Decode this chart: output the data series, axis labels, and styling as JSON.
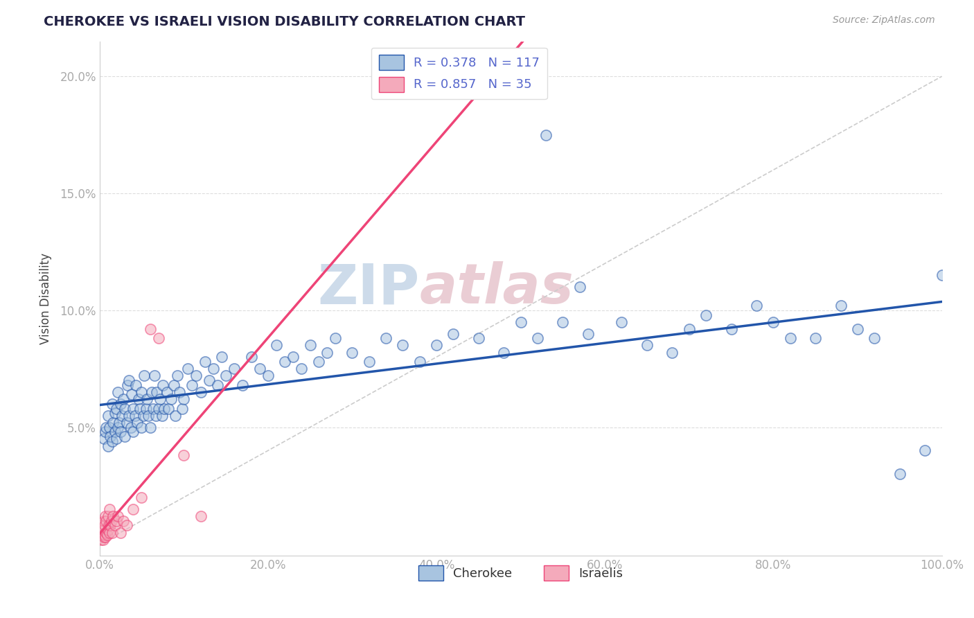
{
  "title": "CHEROKEE VS ISRAELI VISION DISABILITY CORRELATION CHART",
  "source": "Source: ZipAtlas.com",
  "ylabel_label": "Vision Disability",
  "legend_label1": "Cherokee",
  "legend_label2": "Israelis",
  "R1": 0.378,
  "N1": 117,
  "R2": 0.857,
  "N2": 35,
  "xlim": [
    0.0,
    1.0
  ],
  "ylim": [
    -0.005,
    0.215
  ],
  "xticks": [
    0.0,
    0.2,
    0.4,
    0.6,
    0.8,
    1.0
  ],
  "yticks": [
    0.05,
    0.1,
    0.15,
    0.2
  ],
  "xtick_labels": [
    "0.0%",
    "20.0%",
    "40.0%",
    "60.0%",
    "80.0%",
    "100.0%"
  ],
  "ytick_labels": [
    "5.0%",
    "10.0%",
    "15.0%",
    "20.0%"
  ],
  "color_blue": "#A8C4E0",
  "color_pink": "#F4AABB",
  "line_blue": "#2255AA",
  "line_pink": "#EE4477",
  "line_gray": "#CCCCCC",
  "title_color": "#222244",
  "axis_color": "#5566CC",
  "watermark_color": "#C8D8E8",
  "watermark_color2": "#E8C8D0",
  "blue_x": [
    0.005,
    0.007,
    0.008,
    0.01,
    0.01,
    0.012,
    0.013,
    0.015,
    0.015,
    0.016,
    0.018,
    0.018,
    0.02,
    0.02,
    0.022,
    0.022,
    0.023,
    0.025,
    0.025,
    0.027,
    0.028,
    0.03,
    0.03,
    0.032,
    0.033,
    0.035,
    0.035,
    0.037,
    0.038,
    0.04,
    0.04,
    0.042,
    0.043,
    0.045,
    0.046,
    0.048,
    0.05,
    0.05,
    0.052,
    0.053,
    0.055,
    0.056,
    0.058,
    0.06,
    0.062,
    0.064,
    0.065,
    0.067,
    0.068,
    0.07,
    0.072,
    0.074,
    0.075,
    0.077,
    0.08,
    0.082,
    0.085,
    0.088,
    0.09,
    0.092,
    0.095,
    0.098,
    0.1,
    0.105,
    0.11,
    0.115,
    0.12,
    0.125,
    0.13,
    0.135,
    0.14,
    0.145,
    0.15,
    0.16,
    0.17,
    0.18,
    0.19,
    0.2,
    0.21,
    0.22,
    0.23,
    0.24,
    0.25,
    0.26,
    0.27,
    0.28,
    0.3,
    0.32,
    0.34,
    0.36,
    0.38,
    0.4,
    0.42,
    0.45,
    0.48,
    0.5,
    0.52,
    0.55,
    0.58,
    0.62,
    0.65,
    0.68,
    0.7,
    0.72,
    0.75,
    0.78,
    0.8,
    0.82,
    0.85,
    0.88,
    0.9,
    0.92,
    0.95,
    0.98,
    1.0,
    0.53,
    0.57
  ],
  "blue_y": [
    0.045,
    0.048,
    0.05,
    0.042,
    0.055,
    0.05,
    0.046,
    0.044,
    0.06,
    0.052,
    0.048,
    0.056,
    0.045,
    0.058,
    0.05,
    0.065,
    0.052,
    0.048,
    0.06,
    0.055,
    0.062,
    0.046,
    0.058,
    0.052,
    0.068,
    0.055,
    0.07,
    0.05,
    0.064,
    0.048,
    0.058,
    0.055,
    0.068,
    0.052,
    0.062,
    0.058,
    0.05,
    0.065,
    0.055,
    0.072,
    0.058,
    0.062,
    0.055,
    0.05,
    0.065,
    0.058,
    0.072,
    0.055,
    0.065,
    0.058,
    0.062,
    0.055,
    0.068,
    0.058,
    0.065,
    0.058,
    0.062,
    0.068,
    0.055,
    0.072,
    0.065,
    0.058,
    0.062,
    0.075,
    0.068,
    0.072,
    0.065,
    0.078,
    0.07,
    0.075,
    0.068,
    0.08,
    0.072,
    0.075,
    0.068,
    0.08,
    0.075,
    0.072,
    0.085,
    0.078,
    0.08,
    0.075,
    0.085,
    0.078,
    0.082,
    0.088,
    0.082,
    0.078,
    0.088,
    0.085,
    0.078,
    0.085,
    0.09,
    0.088,
    0.082,
    0.095,
    0.088,
    0.095,
    0.09,
    0.095,
    0.085,
    0.082,
    0.092,
    0.098,
    0.092,
    0.102,
    0.095,
    0.088,
    0.088,
    0.102,
    0.092,
    0.088,
    0.03,
    0.04,
    0.115,
    0.175,
    0.11
  ],
  "pink_x": [
    0.002,
    0.003,
    0.003,
    0.004,
    0.004,
    0.005,
    0.005,
    0.006,
    0.006,
    0.007,
    0.007,
    0.008,
    0.008,
    0.009,
    0.01,
    0.01,
    0.011,
    0.012,
    0.012,
    0.013,
    0.014,
    0.015,
    0.016,
    0.018,
    0.02,
    0.022,
    0.025,
    0.028,
    0.032,
    0.04,
    0.05,
    0.06,
    0.07,
    0.1,
    0.12
  ],
  "pink_y": [
    0.002,
    0.004,
    0.008,
    0.002,
    0.006,
    0.003,
    0.01,
    0.004,
    0.008,
    0.003,
    0.012,
    0.005,
    0.01,
    0.004,
    0.006,
    0.012,
    0.008,
    0.005,
    0.015,
    0.008,
    0.01,
    0.005,
    0.012,
    0.008,
    0.01,
    0.012,
    0.005,
    0.01,
    0.008,
    0.015,
    0.02,
    0.092,
    0.088,
    0.038,
    0.012
  ]
}
